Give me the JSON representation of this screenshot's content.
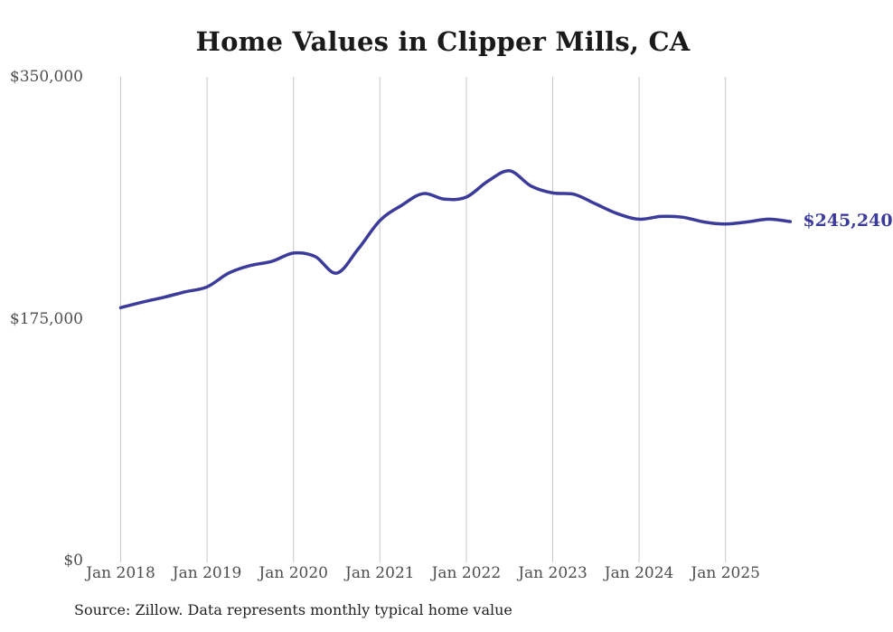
{
  "title": "Home Values in Clipper Mills, CA",
  "colors": {
    "background": "#ffffff",
    "line": "#3b3b9c",
    "grid": "#c9c9c9",
    "axis_label": "#4e4e4e",
    "title_text": "#1a1a1a",
    "source_text": "#222222",
    "end_label": "#3b3b9c"
  },
  "chart_data": {
    "type": "line",
    "title": "Home Values in Clipper Mills, CA",
    "source_note": "Source: Zillow. Data represents monthly typical home value",
    "xlabel": "",
    "ylabel": "",
    "ylim": [
      0,
      350000
    ],
    "grid": "vertical-only",
    "legend": "none",
    "end_annotation": "$245,240",
    "end_value": 245240,
    "line_color": "#3b3b9c",
    "y_ticks": [
      {
        "label": "$350,000",
        "value": 350000
      },
      {
        "label": "$175,000",
        "value": 175000
      },
      {
        "label": "$0",
        "value": 0
      }
    ],
    "x_ticks": [
      {
        "label": "Jan 2018",
        "year": 2018
      },
      {
        "label": "Jan 2019",
        "year": 2019
      },
      {
        "label": "Jan 2020",
        "year": 2020
      },
      {
        "label": "Jan 2021",
        "year": 2021
      },
      {
        "label": "Jan 2022",
        "year": 2022
      },
      {
        "label": "Jan 2023",
        "year": 2023
      },
      {
        "label": "Jan 2024",
        "year": 2024
      },
      {
        "label": "Jan 2025",
        "year": 2025
      }
    ],
    "series": [
      {
        "name": "Monthly typical home value",
        "months": [
          "2018-01",
          "2018-04",
          "2018-07",
          "2018-10",
          "2019-01",
          "2019-04",
          "2019-07",
          "2019-10",
          "2020-01",
          "2020-04",
          "2020-07",
          "2020-10",
          "2021-01",
          "2021-04",
          "2021-07",
          "2021-10",
          "2022-01",
          "2022-04",
          "2022-07",
          "2022-10",
          "2023-01",
          "2023-04",
          "2023-07",
          "2023-10",
          "2024-01",
          "2024-04",
          "2024-07",
          "2024-10",
          "2025-01",
          "2025-04",
          "2025-07",
          "2025-10"
        ],
        "values": [
          183000,
          187000,
          190500,
          194500,
          198000,
          208000,
          213500,
          216500,
          222500,
          220000,
          208000,
          225500,
          246000,
          257000,
          265500,
          261500,
          263000,
          274500,
          282000,
          271000,
          266000,
          265000,
          258000,
          251000,
          247000,
          249000,
          248500,
          245000,
          243500,
          245000,
          247000,
          245240
        ]
      }
    ]
  }
}
